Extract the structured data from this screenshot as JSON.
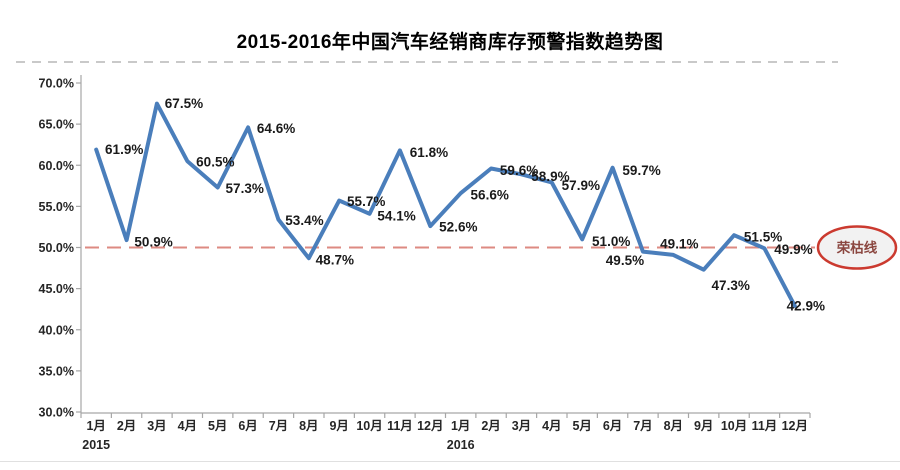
{
  "title": "2015-2016年中国汽车经销商库存预警指数趋势图",
  "chart_data": {
    "type": "line",
    "x": [
      "1月",
      "2月",
      "3月",
      "4月",
      "5月",
      "6月",
      "7月",
      "8月",
      "9月",
      "10月",
      "11月",
      "12月",
      "1月",
      "2月",
      "3月",
      "4月",
      "5月",
      "6月",
      "7月",
      "8月",
      "9月",
      "10月",
      "11月",
      "12月"
    ],
    "x_year_rows": [
      {
        "label": "2015",
        "month_index": 0
      },
      {
        "label": "2016",
        "month_index": 12
      }
    ],
    "series": [
      {
        "color": "#4a7ebb",
        "values": [
          61.9,
          50.9,
          67.5,
          60.5,
          57.3,
          64.6,
          53.4,
          48.7,
          55.7,
          54.1,
          61.8,
          52.6,
          56.6,
          59.6,
          58.9,
          57.9,
          51.0,
          59.7,
          49.5,
          49.1,
          47.3,
          51.5,
          49.9,
          42.9
        ]
      }
    ],
    "data_label_suffix": "%",
    "y_ticks": [
      {
        "label": "70.0%",
        "value": 70
      },
      {
        "label": "65.0%",
        "value": 65
      },
      {
        "label": "60.0%",
        "value": 60
      },
      {
        "label": "55.0%",
        "value": 55
      },
      {
        "label": "50.0%",
        "value": 50
      },
      {
        "label": "45.0%",
        "value": 45
      },
      {
        "label": "40.0%",
        "value": 40
      },
      {
        "label": "35.0%",
        "value": 35
      },
      {
        "label": "30.0%",
        "value": 30
      }
    ],
    "ylim": [
      30,
      70
    ],
    "grid": false,
    "legend": "none",
    "axis_color": "#a6a6a6",
    "reference_line": {
      "value": 50,
      "style": "dashed",
      "color": "#dd8a82"
    },
    "annotation": {
      "label": "荣枯线",
      "attached_to_value": 50,
      "fill": "#f2f2f2",
      "border_color": "#cb3a2f",
      "text_color": "#8b4740"
    }
  }
}
